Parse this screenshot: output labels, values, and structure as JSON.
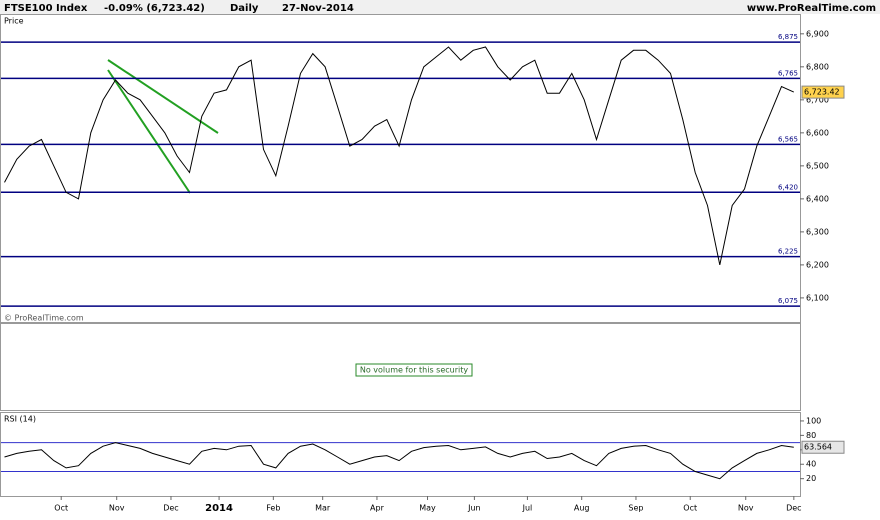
{
  "header": {
    "title": "FTSE100 Index",
    "change": "-0.09% (6,723.42)",
    "interval": "Daily",
    "date": "27-Nov-2014",
    "site": "www.ProRealTime.com"
  },
  "chart_data": [
    {
      "type": "line",
      "panel_label": "Price",
      "watermark": "© ProRealTime.com",
      "color": "#000000",
      "x": [
        0,
        1,
        2,
        3,
        4,
        5,
        6,
        7,
        8,
        9,
        10,
        11,
        12,
        13,
        14,
        15,
        16,
        17,
        18,
        19,
        20,
        21,
        22,
        23,
        24,
        25,
        26,
        27,
        28,
        29,
        30,
        31,
        32,
        33,
        34,
        35,
        36,
        37,
        38,
        39,
        40,
        41,
        42,
        43,
        44,
        45,
        46,
        47,
        48,
        49,
        50,
        51,
        52,
        53,
        54,
        55,
        56,
        57,
        58,
        59,
        60,
        61,
        62,
        63,
        64
      ],
      "values": [
        6450,
        6520,
        6560,
        6580,
        6500,
        6420,
        6400,
        6600,
        6700,
        6760,
        6720,
        6700,
        6650,
        6600,
        6530,
        6480,
        6650,
        6720,
        6730,
        6800,
        6820,
        6550,
        6470,
        6620,
        6780,
        6840,
        6800,
        6680,
        6560,
        6580,
        6620,
        6640,
        6560,
        6700,
        6800,
        6830,
        6860,
        6820,
        6850,
        6860,
        6800,
        6760,
        6800,
        6820,
        6720,
        6720,
        6780,
        6700,
        6580,
        6700,
        6820,
        6850,
        6850,
        6820,
        6780,
        6640,
        6480,
        6380,
        6200,
        6380,
        6430,
        6560,
        6650,
        6740,
        6723.42
      ],
      "value_labels": [
        null,
        null,
        null,
        null,
        null,
        null,
        null,
        null,
        null,
        null,
        null,
        null,
        null,
        null,
        null,
        null,
        null,
        null,
        null,
        null,
        null,
        null,
        null,
        null,
        null,
        null,
        null,
        null,
        null,
        null,
        null,
        null,
        null,
        null,
        null,
        null,
        null,
        null,
        null,
        null,
        null,
        null,
        null,
        null,
        null,
        null,
        null,
        null,
        null,
        null,
        null,
        null,
        null,
        null,
        null,
        null,
        null,
        null,
        null,
        null,
        null,
        null,
        null,
        null,
        "6,723.42"
      ],
      "xlim": [
        -0.2,
        64.5
      ],
      "ylim": [
        6027,
        6957
      ],
      "yticks": [
        {
          "value": 6100,
          "label": "6,100"
        },
        {
          "value": 6200,
          "label": "6,200"
        },
        {
          "value": 6300,
          "label": "6,300"
        },
        {
          "value": 6400,
          "label": "6,400"
        },
        {
          "value": 6500,
          "label": "6,500"
        },
        {
          "value": 6600,
          "label": "6,600"
        },
        {
          "value": 6700,
          "label": "6,700"
        },
        {
          "value": 6800,
          "label": "6,800"
        },
        {
          "value": 6900,
          "label": "6,900"
        }
      ],
      "levels": [
        {
          "value": 6875,
          "label": "6,875"
        },
        {
          "value": 6765,
          "label": "6,765"
        },
        {
          "value": 6565,
          "label": "6,565"
        },
        {
          "value": 6420,
          "label": "6,420"
        },
        {
          "value": 6225,
          "label": "6,225"
        },
        {
          "value": 6075,
          "label": "6,075"
        }
      ],
      "level_color": "#000080",
      "volume_note": "No volume for this security"
    },
    {
      "type": "line",
      "panel_label": "RSI (14)",
      "color": "#000000",
      "x": [
        0,
        1,
        2,
        3,
        4,
        5,
        6,
        7,
        8,
        9,
        10,
        11,
        12,
        13,
        14,
        15,
        16,
        17,
        18,
        19,
        20,
        21,
        22,
        23,
        24,
        25,
        26,
        27,
        28,
        29,
        30,
        31,
        32,
        33,
        34,
        35,
        36,
        37,
        38,
        39,
        40,
        41,
        42,
        43,
        44,
        45,
        46,
        47,
        48,
        49,
        50,
        51,
        52,
        53,
        54,
        55,
        56,
        57,
        58,
        59,
        60,
        61,
        62,
        63,
        64
      ],
      "values": [
        50,
        55,
        58,
        60,
        45,
        35,
        38,
        55,
        65,
        70,
        66,
        62,
        55,
        50,
        45,
        40,
        58,
        62,
        60,
        65,
        66,
        40,
        35,
        55,
        65,
        68,
        60,
        50,
        40,
        45,
        50,
        52,
        45,
        58,
        63,
        65,
        66,
        60,
        62,
        64,
        55,
        50,
        55,
        58,
        48,
        50,
        55,
        45,
        38,
        55,
        62,
        65,
        66,
        60,
        55,
        40,
        30,
        25,
        20,
        35,
        45,
        55,
        60,
        66,
        63.564
      ],
      "xlim": [
        -0.2,
        64.5
      ],
      "ylim": [
        -4,
        111
      ],
      "yticks": [
        20,
        40,
        60,
        80,
        100
      ],
      "levels": [
        70,
        30
      ],
      "level_color": "#3333cc",
      "xticks": [
        {
          "value": 4.6,
          "label": "Oct"
        },
        {
          "value": 9.1,
          "label": "Nov"
        },
        {
          "value": 13.5,
          "label": "Dec"
        },
        {
          "value": 17.4,
          "label": "2014"
        },
        {
          "value": 21.8,
          "label": "Feb"
        },
        {
          "value": 25.8,
          "label": "Mar"
        },
        {
          "value": 30.2,
          "label": "Apr"
        },
        {
          "value": 34.3,
          "label": "May"
        },
        {
          "value": 38.1,
          "label": "Jun"
        },
        {
          "value": 42.4,
          "label": "Jul"
        },
        {
          "value": 46.8,
          "label": "Aug"
        },
        {
          "value": 51.2,
          "label": "Sep"
        },
        {
          "value": 55.6,
          "label": "Oct"
        },
        {
          "value": 60.1,
          "label": "Nov"
        },
        {
          "value": 64.0,
          "label": "Dec"
        }
      ]
    }
  ]
}
